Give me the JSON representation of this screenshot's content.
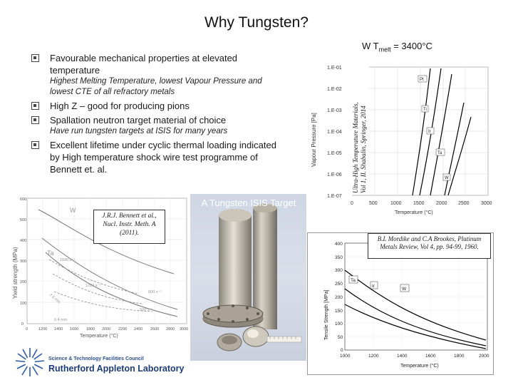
{
  "slide": {
    "title": "Why Tungsten?",
    "w_tmelt": {
      "prefix": "W T",
      "sub": "melt",
      "suffix": " = 3400°C"
    }
  },
  "bullets": [
    {
      "text": "Favourable mechanical properties at elevated temperature",
      "sub": "Highest Melting Temperature, lowest Vapour Pressure and lowest CTE of all refractory metals"
    },
    {
      "text": "High Z – good for producing pions",
      "sub": ""
    },
    {
      "text": "Spallation neutron target material of choice",
      "sub": "Have run tungsten targets at ISIS for many years"
    },
    {
      "text": "Excellent lifetime under cyclic thermal loading indicated by High temperature shock wire test programme of Bennett et. al.",
      "sub": ""
    }
  ],
  "vapour_plot": {
    "ylabel": "Vapour Pressure [Pa]",
    "xlabel": "Temperature (°C)",
    "yticks": [
      "1.E-01",
      "1.E-02",
      "1.E-03",
      "1.E-04",
      "1.E-05",
      "1.E-06",
      "1.E-07"
    ],
    "xticks": [
      "0",
      "500",
      "1000",
      "1500",
      "2000",
      "2500",
      "3000"
    ],
    "labels": [
      "Pt",
      "Ti",
      "Ir",
      "Ta",
      "W"
    ],
    "citation": "Ultra-High Temperature Materials, Vol 1, II. Shabalin, Springer, 2014"
  },
  "fatigue_plot": {
    "ylabel": "Yield strength (MPa)",
    "xlabel": "Temperature (°C)",
    "yticks": [
      "600",
      "500",
      "400",
      "300",
      "200",
      "100",
      "0"
    ],
    "xticks": [
      "0",
      "1200",
      "1400",
      "1600",
      "1800",
      "2000",
      "2200",
      "2400",
      "2600",
      "2800",
      "3000"
    ],
    "labels": [
      "W",
      "Ta",
      "1500 s⁻¹",
      "1200 s⁻¹",
      "800 s⁻¹",
      "2.5 mm",
      "500 s⁻¹",
      "0.4 mm"
    ],
    "citation": "J.R.J. Bennett et al., Nucl. Instr. Meth. A (2011)."
  },
  "photo": {
    "caption": "A Tungsten ISIS Target"
  },
  "tensile_plot": {
    "ylabel": "Tensile Strength [MPa]",
    "xlabel": "Temperature (°C)",
    "yticks": [
      "400",
      "350",
      "300",
      "250",
      "200",
      "150",
      "100",
      "50",
      "0"
    ],
    "xticks": [
      "1000",
      "1200",
      "1400",
      "1600",
      "1800",
      "2000"
    ],
    "labels": [
      "Ta",
      "Ir",
      "W"
    ],
    "citation": "B.L Mordike and C.A Brookes, Platinum Metals Review, Vol 4, pp. 94-99, 1960."
  },
  "logo": {
    "line1": "Science & Technology Facilities Council",
    "line2": "Rutherford Appleton Laboratory"
  },
  "colors": {
    "curve": "#000000",
    "photo_bg": "#d4dae6",
    "logo": "#1d3c7a"
  }
}
